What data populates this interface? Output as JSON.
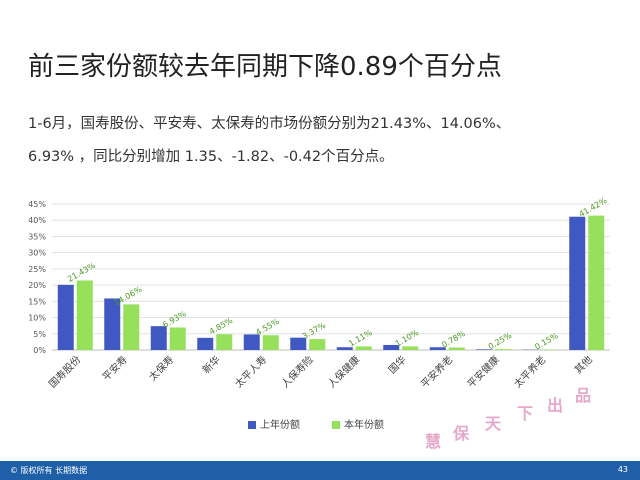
{
  "slide": {
    "title": "前三家份额较去年同期下降0.89个百分点",
    "body_line1": "1-6月，国寿股份、平安寿、太保寿的市场份额分别为21.43%、14.06%、",
    "body_line2": "6.93% ，同比分别增加 1.35、-1.82、-0.42个百分点。"
  },
  "chart_data": {
    "type": "bar",
    "title": "",
    "xlabel": "",
    "ylabel": "",
    "categories": [
      "国寿股份",
      "平安寿",
      "太保寿",
      "新华",
      "太平人寿",
      "人保寿险",
      "人保健康",
      "国华",
      "平安养老",
      "平安健康",
      "太平养老",
      "其他"
    ],
    "series": [
      {
        "name": "上年份额",
        "values": [
          20.08,
          15.88,
          7.35,
          3.75,
          4.8,
          3.8,
          0.85,
          1.55,
          0.85,
          0.2,
          0.1,
          41.08
        ]
      },
      {
        "name": "本年份额",
        "values": [
          21.43,
          14.06,
          6.93,
          4.85,
          4.55,
          3.37,
          1.11,
          1.1,
          0.78,
          0.25,
          0.15,
          41.42
        ]
      }
    ],
    "data_labels": [
      "21.43%",
      "14.06%",
      "6.93%",
      "4.85%",
      "4.55%",
      "3.37%",
      "1.11%",
      "1.10%",
      "0.78%",
      "0.25%",
      "0.15%",
      "41.42%"
    ],
    "y_ticks": [
      "0%",
      "5%",
      "10%",
      "15%",
      "20%",
      "25%",
      "30%",
      "35%",
      "40%",
      "45%"
    ],
    "ylim": [
      0,
      45
    ],
    "grid": true,
    "legend_position": "bottom",
    "colors": {
      "prev": "#4059c2",
      "curr": "#96e05c",
      "label": "#4a9a20"
    }
  },
  "watermark": [
    "慧",
    "保",
    "天",
    "下",
    "出",
    "品"
  ],
  "footer": {
    "copyright": "© 版权所有 长期数据",
    "page_number": "43"
  }
}
